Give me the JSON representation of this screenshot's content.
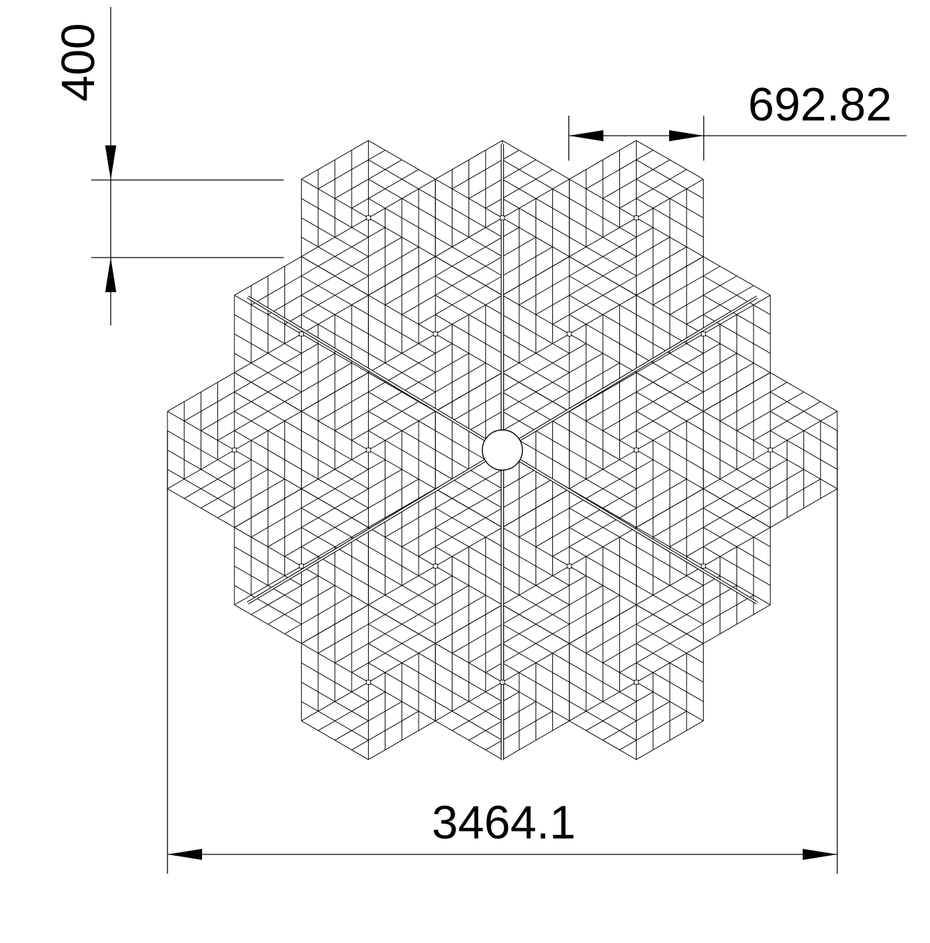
{
  "drawing": {
    "dimensions": {
      "height_label": "400",
      "cell_width_label": "692.82",
      "overall_width_label": "3464.1"
    },
    "colors": {
      "line": "#000000",
      "background": "#ffffff"
    },
    "structure": {
      "type": "hexagonal truss panel array",
      "hub": "circular center hub",
      "arms": 6
    }
  }
}
